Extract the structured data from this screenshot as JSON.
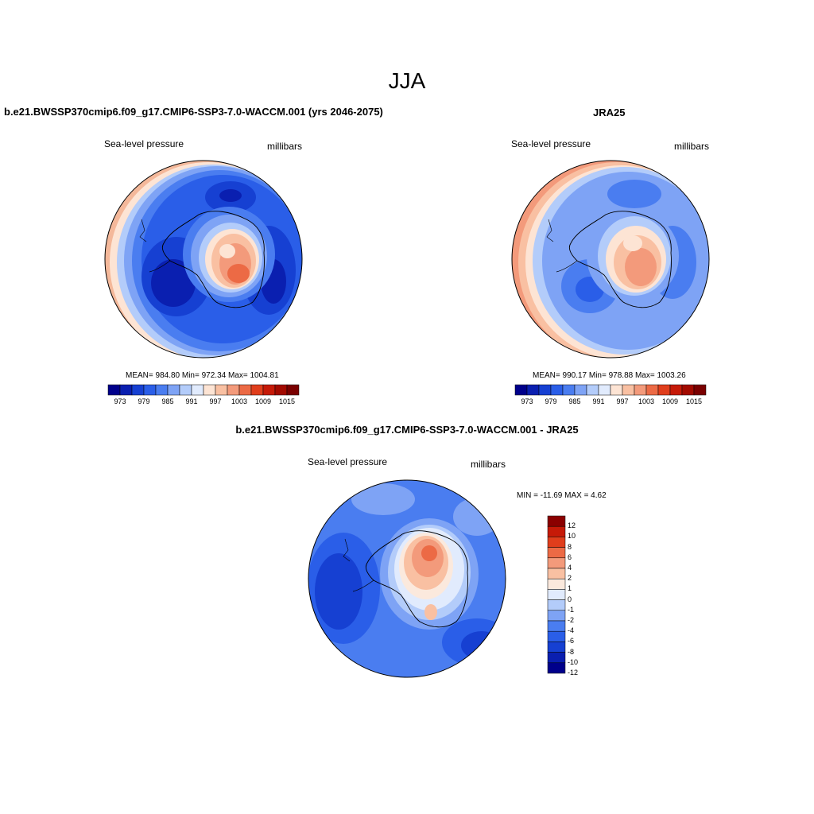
{
  "figure": {
    "title": "JJA",
    "colors": {
      "abs_scale": [
        "#00008b",
        "#0a1fb0",
        "#1640d2",
        "#2a5ee8",
        "#4a7df0",
        "#7ea3f5",
        "#b3ccfa",
        "#e1ebfd",
        "#fde4d4",
        "#f9c0a2",
        "#f39a7b",
        "#ec6a45",
        "#e03e1c",
        "#c61a08",
        "#a20a00",
        "#7a0000"
      ],
      "diff_scale": [
        "#00008b",
        "#0a1fb0",
        "#1640d2",
        "#2a5ee8",
        "#4a7df0",
        "#7ea3f5",
        "#b3ccfa",
        "#e1ebfd",
        "#fbe9dd",
        "#f9c0a2",
        "#f39a7b",
        "#ec6a45",
        "#e03e1c",
        "#c61a08",
        "#8b0000"
      ],
      "coast": "#000000"
    }
  },
  "panels": {
    "model": {
      "title": "b.e21.BWSSP370cmip6.f09_g17.CMIP6-SSP3-7.0-WACCM.001 (yrs 2046-2075)",
      "left_label": "Sea-level pressure",
      "right_label": "millibars",
      "stats": "MEAN= 984.80  Min= 972.34  Max= 1004.81",
      "ticks": [
        "973",
        "979",
        "985",
        "991",
        "997",
        "1003",
        "1009",
        "1015"
      ]
    },
    "obs": {
      "title": "JRA25",
      "left_label": "Sea-level pressure",
      "right_label": "millibars",
      "stats": "MEAN= 990.17  Min= 978.88  Max= 1003.26",
      "ticks": [
        "973",
        "979",
        "985",
        "991",
        "997",
        "1003",
        "1009",
        "1015"
      ]
    },
    "diff": {
      "title": "b.e21.BWSSP370cmip6.f09_g17.CMIP6-SSP3-7.0-WACCM.001 - JRA25",
      "left_label": "Sea-level pressure",
      "right_label": "millibars",
      "stats": "MIN = -11.69 MAX =   4.62",
      "ticks": [
        "12",
        "10",
        "8",
        "6",
        "4",
        "2",
        "1",
        "0",
        "-1",
        "-2",
        "-4",
        "-6",
        "-8",
        "-10",
        "-12"
      ]
    }
  },
  "chart_data": [
    {
      "type": "heatmap",
      "title": "b.e21.BWSSP370cmip6.f09_g17.CMIP6-SSP3-7.0-WACCM.001 (yrs 2046-2075)",
      "variable": "Sea-level pressure",
      "units": "millibars",
      "projection": "south polar stereographic",
      "mean": 984.8,
      "min": 972.34,
      "max": 1004.81,
      "levels": [
        973,
        976,
        979,
        982,
        985,
        988,
        991,
        994,
        997,
        1000,
        1003,
        1006,
        1009,
        1012,
        1015
      ]
    },
    {
      "type": "heatmap",
      "title": "JRA25",
      "variable": "Sea-level pressure",
      "units": "millibars",
      "projection": "south polar stereographic",
      "mean": 990.17,
      "min": 978.88,
      "max": 1003.26,
      "levels": [
        973,
        976,
        979,
        982,
        985,
        988,
        991,
        994,
        997,
        1000,
        1003,
        1006,
        1009,
        1012,
        1015
      ]
    },
    {
      "type": "heatmap",
      "title": "b.e21.BWSSP370cmip6.f09_g17.CMIP6-SSP3-7.0-WACCM.001 - JRA25",
      "variable": "Sea-level pressure",
      "units": "millibars",
      "projection": "south polar stereographic",
      "min": -11.69,
      "max": 4.62,
      "levels": [
        -12,
        -10,
        -8,
        -6,
        -4,
        -2,
        -1,
        0,
        1,
        2,
        4,
        6,
        8,
        10,
        12
      ]
    }
  ]
}
